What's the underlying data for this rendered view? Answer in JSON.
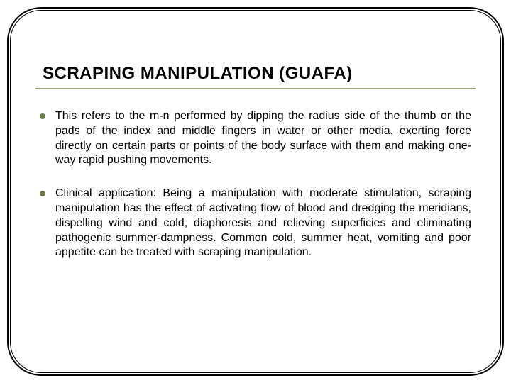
{
  "slide": {
    "title": "SCRAPING MANIPULATION (GUAFA)",
    "title_color": "#000000",
    "title_fontsize": 24,
    "title_underline_color": "#9aa07a",
    "background_color": "#ffffff",
    "frame_outer_color": "#000000",
    "frame_inner_color": "#000000",
    "bullets": [
      {
        "marker_color": "#6b7a4a",
        "text": "This refers to the m-n performed by dipping the radius side of the thumb or the pads of the index and middle fingers in water or other media, exerting force directly on certain parts or points of the body surface with them and making one-way rapid pushing movements."
      },
      {
        "marker_color": "#6b7a4a",
        "text": "Clinical application: Being a manipulation with moderate stimulation, scraping manipulation has the effect of activating flow of blood and dredging the meridians, dispelling wind and cold, diaphoresis and relieving superficies and eliminating pathogenic summer-dampness. Common cold, summer heat, vomiting and poor appetite can be treated with scraping manipulation."
      }
    ],
    "body_fontsize": 16,
    "body_color": "#000000",
    "body_align": "justify"
  }
}
